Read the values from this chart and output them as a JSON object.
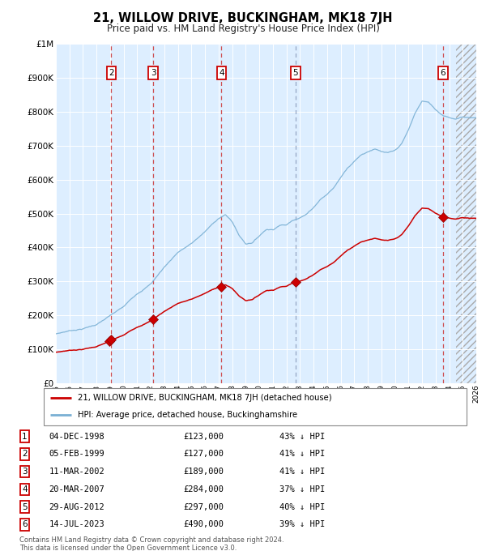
{
  "title": "21, WILLOW DRIVE, BUCKINGHAM, MK18 7JH",
  "subtitle": "Price paid vs. HM Land Registry's House Price Index (HPI)",
  "transactions": [
    {
      "num": 1,
      "date": "04-DEC-1998",
      "year": 1998.92,
      "price": 123000,
      "pct": "43%",
      "label_num": "1"
    },
    {
      "num": 2,
      "date": "05-FEB-1999",
      "year": 1999.09,
      "price": 127000,
      "pct": "41%",
      "label_num": "2"
    },
    {
      "num": 3,
      "date": "11-MAR-2002",
      "year": 2002.19,
      "price": 189000,
      "pct": "41%",
      "label_num": "3"
    },
    {
      "num": 4,
      "date": "20-MAR-2007",
      "year": 2007.21,
      "price": 284000,
      "pct": "37%",
      "label_num": "4"
    },
    {
      "num": 5,
      "date": "29-AUG-2012",
      "year": 2012.66,
      "price": 297000,
      "pct": "40%",
      "label_num": "5"
    },
    {
      "num": 6,
      "date": "14-JUL-2023",
      "year": 2023.53,
      "price": 490000,
      "pct": "39%",
      "label_num": "6"
    }
  ],
  "x_start": 1995,
  "x_end": 2026,
  "y_min": 0,
  "y_max": 1000000,
  "y_ticks": [
    0,
    100000,
    200000,
    300000,
    400000,
    500000,
    600000,
    700000,
    800000,
    900000,
    1000000
  ],
  "x_ticks": [
    1995,
    1996,
    1997,
    1998,
    1999,
    2000,
    2001,
    2002,
    2003,
    2004,
    2005,
    2006,
    2007,
    2008,
    2009,
    2010,
    2011,
    2012,
    2013,
    2014,
    2015,
    2016,
    2017,
    2018,
    2019,
    2020,
    2021,
    2022,
    2023,
    2024,
    2025,
    2026
  ],
  "bg_color": "#ddeeff",
  "grid_color": "#ffffff",
  "red_line_color": "#cc0000",
  "blue_line_color": "#7ab0d4",
  "legend_label_red": "21, WILLOW DRIVE, BUCKINGHAM, MK18 7JH (detached house)",
  "legend_label_blue": "HPI: Average price, detached house, Buckinghamshire",
  "footer1": "Contains HM Land Registry data © Crown copyright and database right 2024.",
  "footer2": "This data is licensed under the Open Government Licence v3.0.",
  "hatch_start": 2024.5,
  "box_nums_show": [
    2,
    3,
    4,
    5,
    6
  ]
}
